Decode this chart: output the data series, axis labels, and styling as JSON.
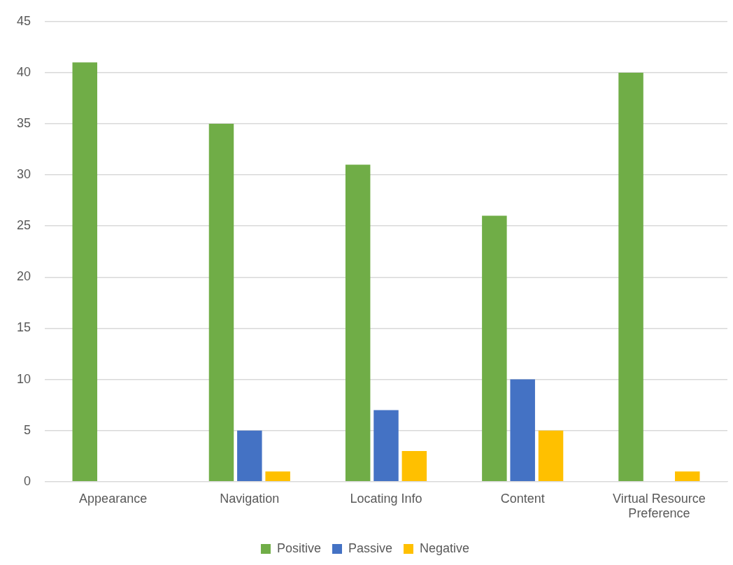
{
  "chart_data": {
    "type": "bar",
    "categories": [
      "Appearance",
      "Navigation",
      "Locating Info",
      "Content",
      "Virtual Resource Preference"
    ],
    "series": [
      {
        "name": "Positive",
        "color": "#70ad47",
        "values": [
          41,
          35,
          31,
          26,
          40
        ]
      },
      {
        "name": "Passive",
        "color": "#4472c4",
        "values": [
          0,
          5,
          7,
          10,
          0
        ]
      },
      {
        "name": "Negative",
        "color": "#ffc000",
        "values": [
          0,
          1,
          3,
          5,
          1
        ]
      }
    ],
    "ylim": [
      0,
      45
    ],
    "yticks": [
      0,
      5,
      10,
      15,
      20,
      25,
      30,
      35,
      40,
      45
    ],
    "grid": "y",
    "legend": "bottom"
  }
}
